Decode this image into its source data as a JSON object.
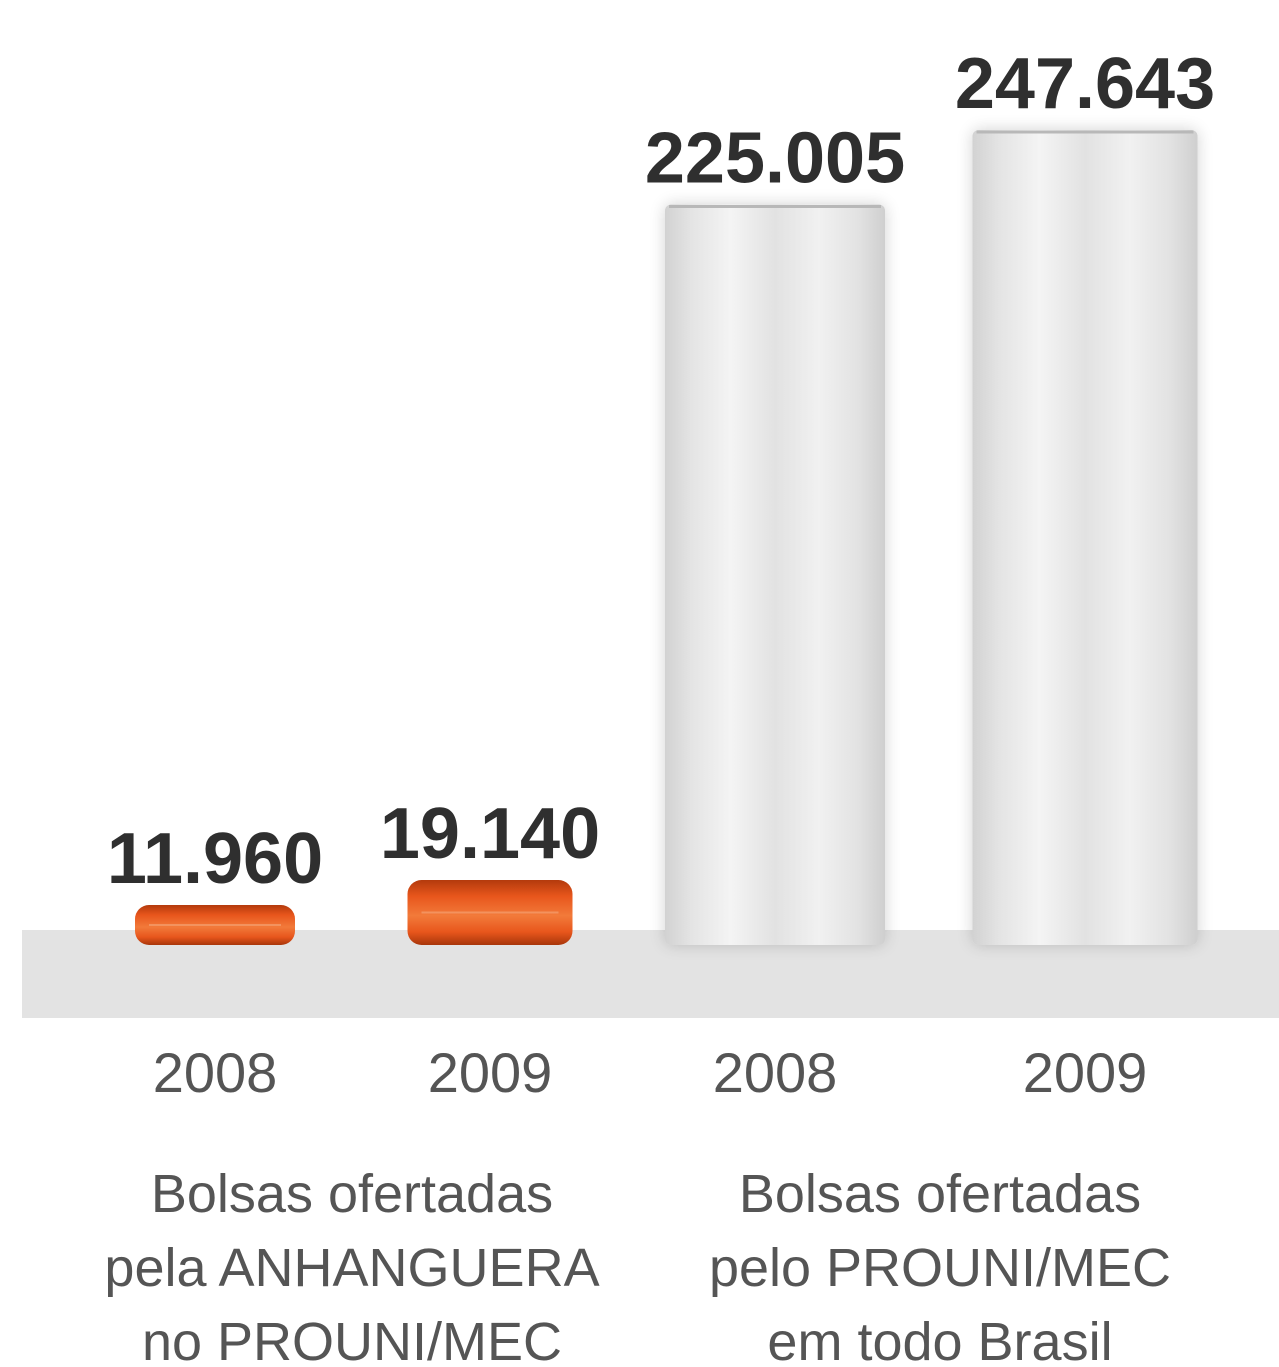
{
  "chart_data": {
    "type": "bar",
    "title": "",
    "xlabel": "",
    "ylabel": "",
    "ylim": [
      0,
      247643
    ],
    "colors": {
      "anhanguera": "#e8561c",
      "prouni": "#e6e6e6",
      "baseline": "#e3e3e3",
      "value_text": "#2f2f2f",
      "label_text": "#555555"
    },
    "groups": [
      {
        "name": "Bolsas ofertadas pela ANHANGUERA no PROUNI/MEC",
        "label_lines": [
          "Bolsas ofertadas",
          "pela ANHANGUERA",
          "no PROUNI/MEC"
        ],
        "color_key": "anhanguera",
        "style": "orange",
        "bars": [
          {
            "category": "2008",
            "value": 11960,
            "value_label": "11.960"
          },
          {
            "category": "2009",
            "value": 19140,
            "value_label": "19.140"
          }
        ]
      },
      {
        "name": "Bolsas ofertadas pelo PROUNI/MEC em todo Brasil",
        "label_lines": [
          "Bolsas ofertadas",
          "pelo PROUNI/MEC",
          "em todo Brasil"
        ],
        "color_key": "prouni",
        "style": "white",
        "bars": [
          {
            "category": "2008",
            "value": 225005,
            "value_label": "225.005"
          },
          {
            "category": "2009",
            "value": 247643,
            "value_label": "247.643"
          }
        ]
      }
    ]
  }
}
